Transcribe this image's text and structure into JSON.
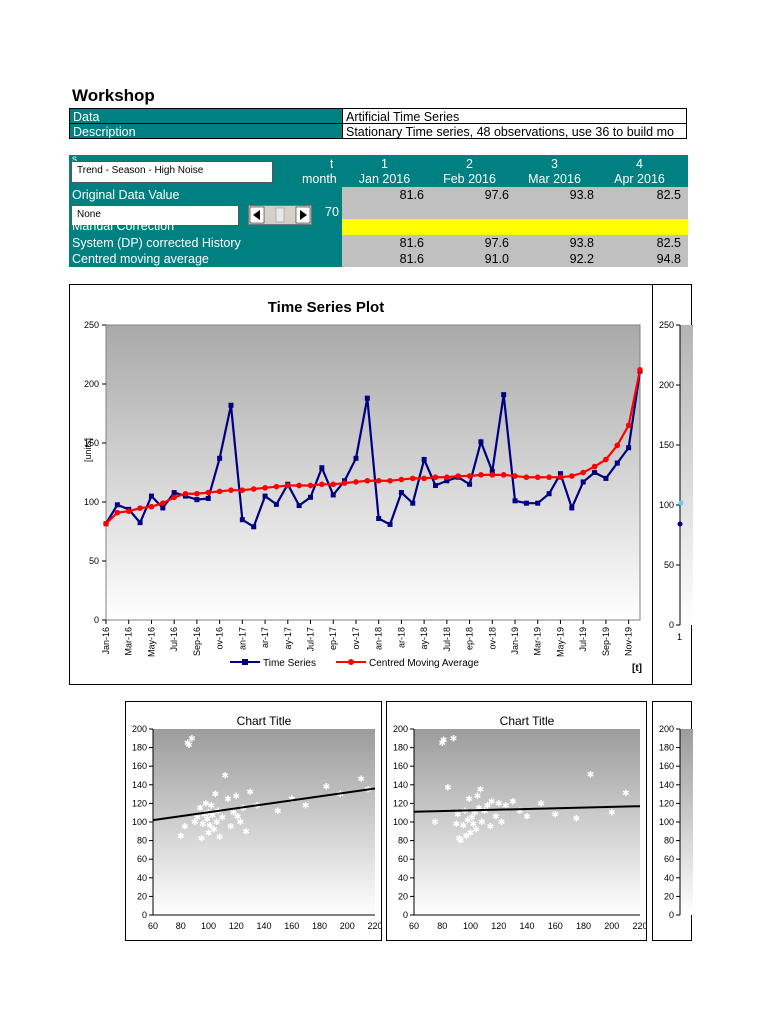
{
  "sheet_title": "Workshop",
  "info": {
    "data_label": "Data",
    "data_value": "Artificial Time Series",
    "desc_label": "Description",
    "desc_value": "Stationary Time series, 48 observations, use 36 to build mo"
  },
  "table": {
    "header_s": "s",
    "header_t": "t",
    "header_month": "month",
    "selector_text": "Trend - Season - High Noise",
    "columns": [
      {
        "t": "1",
        "month": "Jan 2016"
      },
      {
        "t": "2",
        "month": "Feb 2016"
      },
      {
        "t": "3",
        "month": "Mar 2016"
      },
      {
        "t": "4",
        "month": "Apr 2016"
      }
    ],
    "rows": {
      "original_label": "Original Data Value",
      "original_values": [
        "81.6",
        "97.6",
        "93.8",
        "82.5"
      ],
      "none_text": "None",
      "spinner_value": "70",
      "manual_label": "Manual Correction",
      "system_label": "System (DP) corrected History",
      "system_values": [
        "81.6",
        "97.6",
        "93.8",
        "82.5"
      ],
      "cma_label": "Centred moving average",
      "cma_values": [
        "81.6",
        "91.0",
        "92.2",
        "94.8"
      ]
    }
  },
  "colors": {
    "teal": "#008080",
    "yellow": "#ffff00",
    "grey_cell": "#c0c0c0",
    "series": "#000080",
    "cma": "#ff0000"
  },
  "chart_data": [
    {
      "type": "line",
      "title": "Time Series Plot",
      "ylabel": "[units]",
      "xlabel": "[t]",
      "ylim": [
        0,
        250
      ],
      "yticks": [
        "0",
        "50",
        "100",
        "150",
        "200",
        "250"
      ],
      "xtick_labels": [
        "Jan-16",
        "Mar-16",
        "May-16",
        "Jul-16",
        "Sep-16",
        "ov-16",
        "an-17",
        "ar-17",
        "ay-17",
        "Jul-17",
        "ep-17",
        "ov-17",
        "an-18",
        "ar-18",
        "ay-18",
        "Jul-18",
        "ep-18",
        "ov-18",
        "Jan-19",
        "Mar-19",
        "May-19",
        "Jul-19",
        "Sep-19",
        "Nov-19"
      ],
      "legend_position": "bottom",
      "series": [
        {
          "name": "Time Series",
          "values": [
            81.6,
            97.6,
            93.8,
            82.5,
            105,
            95,
            108,
            105,
            102,
            103,
            137,
            182,
            85,
            79,
            105,
            98,
            115,
            97,
            104,
            129,
            106,
            118,
            137,
            188,
            86,
            81,
            108,
            99,
            136,
            114,
            118,
            121,
            115,
            151,
            126,
            191,
            101,
            99,
            99,
            107,
            124,
            95,
            117,
            125,
            120,
            133,
            146,
            211
          ]
        },
        {
          "name": "Centred Moving Average",
          "values": [
            81.6,
            91.0,
            92.2,
            94.8,
            96,
            99,
            104,
            107,
            107,
            108,
            109,
            110,
            110,
            111,
            112,
            113,
            114,
            114,
            114,
            115,
            115,
            116,
            117,
            118,
            118,
            118,
            119,
            120,
            120,
            121,
            121,
            122,
            122,
            123,
            123,
            123,
            122,
            121,
            121,
            121,
            121,
            122,
            125,
            130,
            136,
            148,
            165,
            212
          ]
        }
      ]
    },
    {
      "type": "line",
      "title": "",
      "ylim": [
        0,
        250
      ],
      "yticks": [
        "0",
        "50",
        "100",
        "150",
        "200",
        "250"
      ],
      "xtick_labels": [
        "1"
      ]
    },
    {
      "type": "scatter",
      "title": "Chart Title",
      "ylim": [
        0,
        200
      ],
      "yticks": [
        "0",
        "20",
        "40",
        "60",
        "80",
        "100",
        "120",
        "140",
        "160",
        "180",
        "200"
      ],
      "xlim": [
        60,
        220
      ],
      "xtick_labels": [
        "60",
        "80",
        "100",
        "120",
        "140",
        "160",
        "180",
        "200",
        "220"
      ],
      "points": [
        [
          80,
          85
        ],
        [
          83,
          95
        ],
        [
          85,
          185
        ],
        [
          86,
          183
        ],
        [
          88,
          190
        ],
        [
          90,
          100
        ],
        [
          92,
          105
        ],
        [
          94,
          115
        ],
        [
          95,
          82
        ],
        [
          96,
          98
        ],
        [
          97,
          108
        ],
        [
          98,
          120
        ],
        [
          99,
          103
        ],
        [
          100,
          88
        ],
        [
          100,
          110
        ],
        [
          101,
          96
        ],
        [
          102,
          118
        ],
        [
          103,
          107
        ],
        [
          104,
          92
        ],
        [
          105,
          130
        ],
        [
          106,
          100
        ],
        [
          107,
          112
        ],
        [
          108,
          84
        ],
        [
          110,
          105
        ],
        [
          112,
          150
        ],
        [
          114,
          125
        ],
        [
          116,
          95
        ],
        [
          118,
          110
        ],
        [
          120,
          128
        ],
        [
          121,
          106
        ],
        [
          123,
          100
        ],
        [
          125,
          115
        ],
        [
          127,
          90
        ],
        [
          130,
          132
        ],
        [
          135,
          118
        ],
        [
          150,
          112
        ],
        [
          160,
          125
        ],
        [
          170,
          118
        ],
        [
          185,
          138
        ],
        [
          195,
          130
        ],
        [
          210,
          146
        ],
        [
          215,
          135
        ]
      ],
      "trend": [
        [
          60,
          102
        ],
        [
          220,
          136
        ]
      ]
    },
    {
      "type": "scatter",
      "title": "Chart Title",
      "ylim": [
        0,
        200
      ],
      "yticks": [
        "0",
        "20",
        "40",
        "60",
        "80",
        "100",
        "120",
        "140",
        "160",
        "180",
        "200"
      ],
      "xlim": [
        60,
        220
      ],
      "xtick_labels": [
        "60",
        "80",
        "100",
        "120",
        "140",
        "160",
        "180",
        "200",
        "220"
      ],
      "points": [
        [
          75,
          100
        ],
        [
          80,
          185
        ],
        [
          81,
          188
        ],
        [
          84,
          137
        ],
        [
          88,
          190
        ],
        [
          90,
          98
        ],
        [
          91,
          108
        ],
        [
          92,
          82
        ],
        [
          93,
          80
        ],
        [
          95,
          96
        ],
        [
          96,
          112
        ],
        [
          97,
          85
        ],
        [
          98,
          102
        ],
        [
          99,
          125
        ],
        [
          100,
          88
        ],
        [
          101,
          105
        ],
        [
          102,
          98
        ],
        [
          103,
          110
        ],
        [
          104,
          92
        ],
        [
          105,
          128
        ],
        [
          106,
          115
        ],
        [
          107,
          135
        ],
        [
          108,
          100
        ],
        [
          110,
          112
        ],
        [
          112,
          118
        ],
        [
          114,
          95
        ],
        [
          115,
          122
        ],
        [
          118,
          106
        ],
        [
          120,
          120
        ],
        [
          122,
          100
        ],
        [
          125,
          118
        ],
        [
          130,
          122
        ],
        [
          135,
          112
        ],
        [
          140,
          106
        ],
        [
          150,
          120
        ],
        [
          160,
          108
        ],
        [
          175,
          104
        ],
        [
          185,
          151
        ],
        [
          200,
          110
        ],
        [
          210,
          131
        ]
      ],
      "trend": [
        [
          60,
          111
        ],
        [
          220,
          117
        ]
      ]
    },
    {
      "type": "scatter",
      "title": "",
      "ylim": [
        0,
        200
      ],
      "yticks": [
        "0",
        "20",
        "40",
        "60",
        "80",
        "100",
        "120",
        "140",
        "160",
        "180",
        "200"
      ]
    }
  ]
}
